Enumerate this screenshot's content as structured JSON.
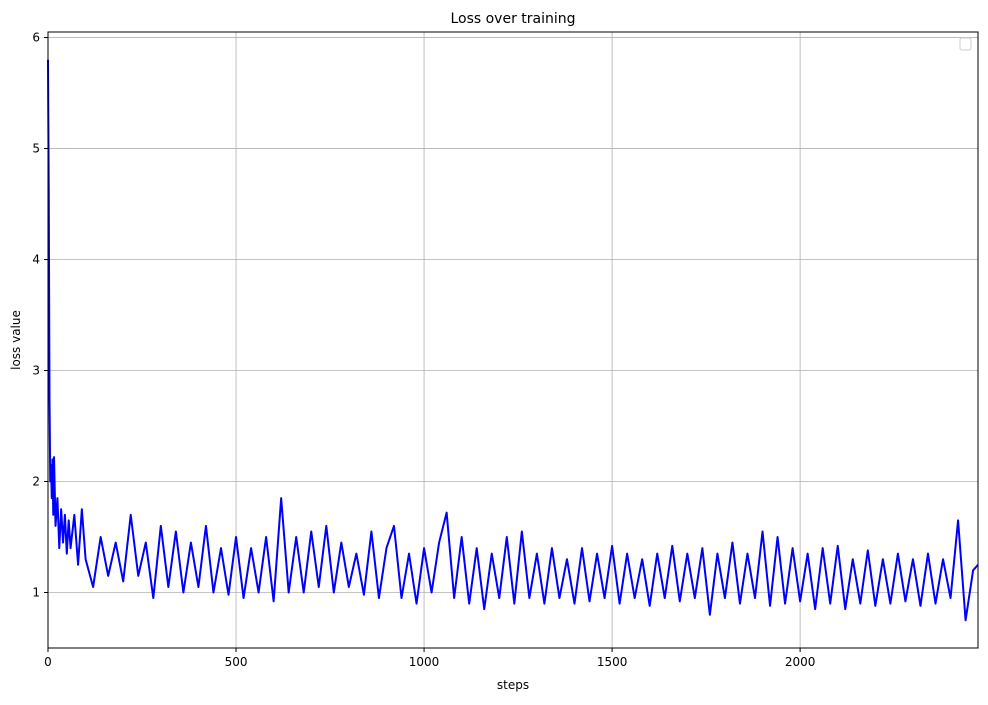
{
  "chart_data": {
    "type": "line",
    "title": "Loss over training",
    "x_label": "steps",
    "y_label": "loss value",
    "series": [
      {
        "color": "#0000ff",
        "x": [
          0,
          2,
          4,
          6,
          8,
          10,
          12,
          14,
          16,
          20,
          25,
          30,
          35,
          40,
          45,
          50,
          55,
          60,
          70,
          80,
          90,
          100,
          120,
          140,
          160,
          180,
          200,
          220,
          240,
          260,
          280,
          300,
          320,
          340,
          360,
          380,
          400,
          420,
          440,
          460,
          480,
          500,
          520,
          540,
          560,
          580,
          600,
          620,
          640,
          660,
          680,
          700,
          720,
          740,
          760,
          780,
          800,
          820,
          840,
          860,
          880,
          900,
          920,
          940,
          960,
          980,
          1000,
          1020,
          1040,
          1060,
          1080,
          1100,
          1120,
          1140,
          1160,
          1180,
          1200,
          1220,
          1240,
          1260,
          1280,
          1300,
          1320,
          1340,
          1360,
          1380,
          1400,
          1420,
          1440,
          1460,
          1480,
          1500,
          1520,
          1540,
          1560,
          1580,
          1600,
          1620,
          1640,
          1660,
          1680,
          1700,
          1720,
          1740,
          1760,
          1780,
          1800,
          1820,
          1840,
          1860,
          1880,
          1900,
          1920,
          1940,
          1960,
          1980,
          2000,
          2020,
          2040,
          2060,
          2080,
          2100,
          2120,
          2140,
          2160,
          2180,
          2200,
          2220,
          2240,
          2260,
          2280,
          2300,
          2320,
          2340,
          2360,
          2380,
          2400,
          2420,
          2440,
          2460,
          2473
        ],
        "values": [
          5.8,
          4.6,
          2.75,
          2.0,
          2.15,
          1.85,
          2.2,
          1.7,
          2.22,
          1.6,
          1.85,
          1.4,
          1.75,
          1.45,
          1.7,
          1.35,
          1.65,
          1.4,
          1.7,
          1.25,
          1.75,
          1.3,
          1.05,
          1.5,
          1.15,
          1.45,
          1.1,
          1.7,
          1.15,
          1.45,
          0.95,
          1.6,
          1.05,
          1.55,
          1.0,
          1.45,
          1.05,
          1.6,
          1.0,
          1.4,
          0.98,
          1.5,
          0.95,
          1.4,
          1.0,
          1.5,
          0.92,
          1.85,
          1.0,
          1.5,
          1.0,
          1.55,
          1.05,
          1.6,
          1.0,
          1.45,
          1.05,
          1.35,
          0.98,
          1.55,
          0.95,
          1.4,
          1.6,
          0.95,
          1.35,
          0.9,
          1.4,
          1.0,
          1.45,
          1.72,
          0.95,
          1.5,
          0.9,
          1.4,
          0.85,
          1.35,
          0.95,
          1.5,
          0.9,
          1.55,
          0.95,
          1.35,
          0.9,
          1.4,
          0.95,
          1.3,
          0.9,
          1.4,
          0.92,
          1.35,
          0.95,
          1.42,
          0.9,
          1.35,
          0.95,
          1.3,
          0.88,
          1.35,
          0.95,
          1.42,
          0.92,
          1.35,
          0.95,
          1.4,
          0.8,
          1.35,
          0.95,
          1.45,
          0.9,
          1.35,
          0.95,
          1.55,
          0.88,
          1.5,
          0.9,
          1.4,
          0.92,
          1.35,
          0.85,
          1.4,
          0.9,
          1.42,
          0.85,
          1.3,
          0.9,
          1.38,
          0.88,
          1.3,
          0.9,
          1.35,
          0.92,
          1.3,
          0.88,
          1.35,
          0.9,
          1.3,
          0.95,
          1.65,
          0.75,
          1.2,
          1.25
        ]
      }
    ],
    "xlim": [
      0,
      2473
    ],
    "ylim": [
      0.5,
      6.05
    ],
    "xticks": [
      0,
      500,
      1000,
      1500,
      2000
    ],
    "yticks": [
      1,
      2,
      3,
      4,
      5,
      6
    ],
    "grid": true
  }
}
